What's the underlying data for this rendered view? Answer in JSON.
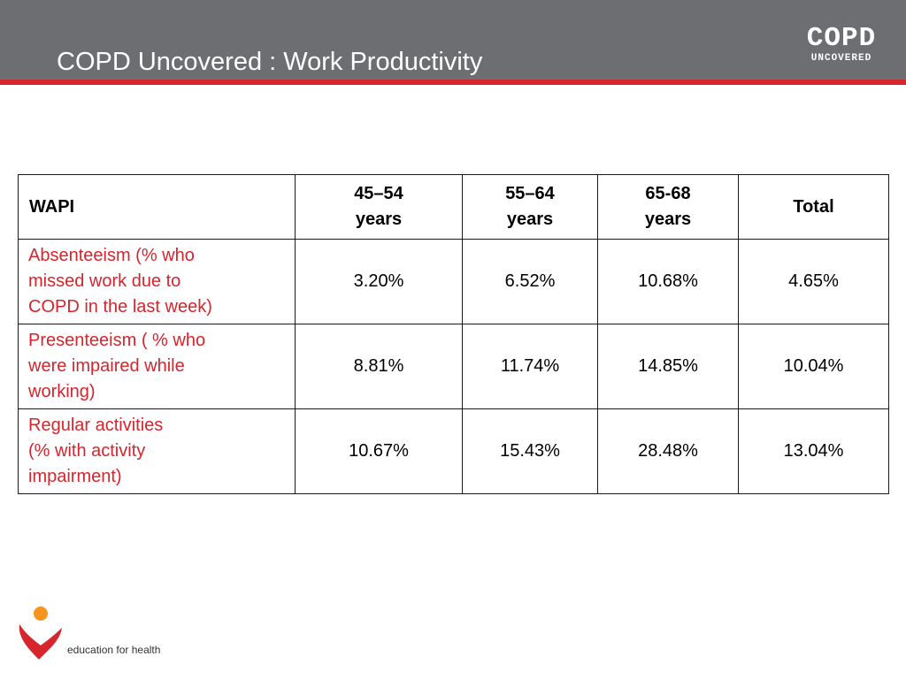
{
  "slide": {
    "title": "COPD Uncovered : Work Productivity",
    "brand_main": "COPD",
    "brand_sub": "UNCOVERED",
    "footer_logo_text": "education for health"
  },
  "table": {
    "headers": [
      "WAPI",
      "45–54\nyears",
      "55–64\nyears",
      "65-68\nyears",
      "Total"
    ],
    "rows": [
      {
        "label": "Absenteeism  (% who\n missed work due to\n COPD in the last week)",
        "values": [
          "3.20%",
          "6.52%",
          "10.68%",
          "4.65%"
        ]
      },
      {
        "label": "Presenteeism ( % who\n were impaired while\n working)",
        "values": [
          "8.81%",
          "11.74%",
          "14.85%",
          "10.04%"
        ]
      },
      {
        "label": "Regular activities\n(% with activity\nimpairment)",
        "values": [
          "10.67%",
          "15.43%",
          "28.48%",
          "13.04%"
        ]
      }
    ]
  },
  "colors": {
    "header_bg": "#6d6e71",
    "accent_red": "#d6252c",
    "logo_orange": "#f7941d"
  }
}
